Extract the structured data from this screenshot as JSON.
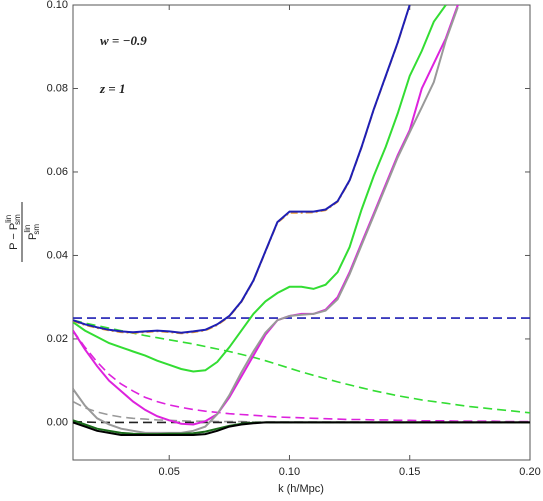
{
  "chart_data": {
    "type": "line",
    "annotations": [
      "w = −0.9",
      "z = 1"
    ],
    "xlabel": "k (h/Mpc)",
    "ylabel": {
      "numerator": "P − P",
      "sup": "lin",
      "sub": "sm",
      "denominator": "P",
      "den_sup": "lin",
      "den_sub": "sm"
    },
    "xlim": [
      0.01,
      0.2
    ],
    "ylim": [
      -0.009,
      0.1
    ],
    "xticks": [
      0.05,
      {
        "value": 0.1,
        "label": "0.10"
      },
      0.15,
      {
        "value": 0.2,
        "label": "0.20"
      }
    ],
    "yticks": [
      {
        "value": 0,
        "label": "0.00"
      },
      0.02,
      0.04,
      0.06,
      0.08,
      {
        "value": 0.1,
        "label": "0.10"
      }
    ],
    "x": [
      0.01,
      0.015,
      0.02,
      0.025,
      0.03,
      0.035,
      0.04,
      0.045,
      0.05,
      0.055,
      0.06,
      0.065,
      0.07,
      0.075,
      0.08,
      0.085,
      0.09,
      0.095,
      0.1,
      0.105,
      0.11,
      0.115,
      0.12,
      0.125,
      0.13,
      0.135,
      0.14,
      0.145,
      0.15,
      0.155,
      0.16,
      0.165,
      0.17,
      0.175,
      0.18,
      0.185,
      0.19,
      0.195,
      0.2
    ],
    "series": [
      {
        "color": "#1f1fb4",
        "style": "dashed",
        "values": [
          0.025,
          0.025,
          0.025,
          0.025,
          0.025,
          0.025,
          0.025,
          0.025,
          0.025,
          0.025,
          0.025,
          0.025,
          0.025,
          0.025,
          0.025,
          0.025,
          0.025,
          0.025,
          0.025,
          0.025,
          0.025,
          0.025,
          0.025,
          0.025,
          0.025,
          0.025,
          0.025,
          0.025,
          0.025,
          0.025,
          0.025,
          0.025,
          0.025,
          0.025,
          0.025,
          0.025,
          0.025,
          0.025,
          0.025
        ]
      },
      {
        "color": "#33dd33",
        "style": "dashed",
        "values": [
          0.0245,
          0.0238,
          0.0232,
          0.0226,
          0.022,
          0.0214,
          0.0208,
          0.0203,
          0.0198,
          0.0193,
          0.0188,
          0.0182,
          0.0176,
          0.017,
          0.0163,
          0.0156,
          0.0148,
          0.0139,
          0.013,
          0.0121,
          0.0113,
          0.0105,
          0.0097,
          0.009,
          0.0083,
          0.0076,
          0.007,
          0.0064,
          0.0059,
          0.0054,
          0.005,
          0.0046,
          0.0042,
          0.0038,
          0.0035,
          0.0032,
          0.0029,
          0.0026,
          0.0023
        ]
      },
      {
        "color": "#dd22dd",
        "style": "dashed",
        "values": [
          0.022,
          0.018,
          0.0145,
          0.0115,
          0.0092,
          0.0075,
          0.006,
          0.005,
          0.0042,
          0.0036,
          0.0031,
          0.0027,
          0.0024,
          0.0021,
          0.0019,
          0.0017,
          0.0015,
          0.0013,
          0.0012,
          0.0011,
          0.001,
          0.0009,
          0.0008,
          0.0007,
          0.0007,
          0.0006,
          0.0006,
          0.0005,
          0.0005,
          0.0004,
          0.0004,
          0.0004,
          0.0003,
          0.0003,
          0.0003,
          0.0003,
          0.0002,
          0.0002,
          0.0002
        ]
      },
      {
        "color": "#999999",
        "style": "dashed",
        "values": [
          0.005,
          0.0035,
          0.0025,
          0.0018,
          0.0013,
          0.001,
          0.0008,
          0.0006,
          0.0005,
          0.0004,
          0.0003,
          0.0003,
          0.0002,
          0.0002,
          0.0002,
          0.0001,
          0.0001,
          0.0001,
          0.0001,
          0.0001,
          0.0001,
          0.0001,
          0.0001,
          0.0001,
          0.0001,
          0.0001,
          0.0001,
          0.0001,
          0.0001,
          0.0001,
          0.0001,
          0.0001,
          0.0001,
          0.0001,
          0.0001,
          0.0001,
          0.0001,
          0.0001,
          0.0001
        ]
      },
      {
        "color": "#222222",
        "style": "dashed",
        "values": [
          0.0002,
          0.0001,
          0,
          0,
          0,
          0,
          0,
          0,
          0,
          0,
          0,
          0,
          0,
          0,
          0,
          0,
          0,
          0,
          0,
          0,
          0,
          0,
          0,
          0,
          0,
          0,
          0,
          0,
          0,
          0,
          0,
          0,
          0,
          0,
          0,
          0,
          0,
          0,
          0
        ]
      },
      {
        "color": "#33dd33",
        "style": "solid",
        "values": [
          0.024,
          0.022,
          0.0205,
          0.019,
          0.018,
          0.017,
          0.016,
          0.0148,
          0.0138,
          0.0128,
          0.0122,
          0.0125,
          0.0145,
          0.018,
          0.022,
          0.026,
          0.029,
          0.031,
          0.0325,
          0.0325,
          0.032,
          0.033,
          0.036,
          0.042,
          0.051,
          0.059,
          0.066,
          0.074,
          0.083,
          0.089,
          0.096,
          0.1,
          null,
          null,
          null,
          null,
          null,
          null,
          null
        ]
      },
      {
        "color": "#dd22dd",
        "style": "solid",
        "values": [
          0.022,
          0.0175,
          0.0135,
          0.01,
          0.0075,
          0.005,
          0.003,
          0.0015,
          0.0005,
          -0.0003,
          -0.0005,
          0.0003,
          0.002,
          0.006,
          0.011,
          0.016,
          0.021,
          0.0245,
          0.0255,
          0.026,
          0.026,
          0.027,
          0.03,
          0.036,
          0.043,
          0.05,
          0.057,
          0.064,
          0.07,
          0.08,
          0.086,
          0.092,
          0.1,
          null,
          null,
          null,
          null,
          null,
          null
        ]
      },
      {
        "color": "#999999",
        "style": "solid",
        "values": [
          0.008,
          0.004,
          0.001,
          -0.0005,
          -0.0015,
          -0.002,
          -0.0025,
          -0.0025,
          -0.0025,
          -0.0025,
          -0.002,
          -0.001,
          0.002,
          0.0065,
          0.012,
          0.017,
          0.0215,
          0.0245,
          0.0255,
          0.0258,
          0.026,
          0.0268,
          0.0295,
          0.0355,
          0.0425,
          0.0495,
          0.0565,
          0.0635,
          0.0695,
          0.0755,
          0.0815,
          0.0915,
          0.0995,
          null,
          null,
          null,
          null,
          null,
          null
        ]
      },
      {
        "color": "#1a6b1a",
        "style": "solid",
        "values": [
          0.0005,
          -0.0005,
          -0.0015,
          -0.002,
          -0.0025,
          -0.0027,
          -0.0028,
          -0.0028,
          -0.0027,
          -0.0027,
          -0.0026,
          -0.0022,
          -0.0015,
          -0.0008,
          -0.0003,
          -0.0001,
          0,
          0,
          0,
          0,
          0,
          0,
          0,
          0,
          0,
          0,
          0,
          0,
          0,
          0,
          0,
          0,
          0,
          0,
          0,
          0,
          0,
          0,
          0
        ]
      },
      {
        "color": "#000000",
        "style": "solid",
        "values": [
          0,
          -0.001,
          -0.002,
          -0.0025,
          -0.003,
          -0.003,
          -0.003,
          -0.003,
          -0.003,
          -0.003,
          -0.003,
          -0.0028,
          -0.002,
          -0.001,
          -0.0005,
          -0.0002,
          0,
          0,
          0,
          0,
          0,
          0,
          0,
          0,
          0,
          0,
          0,
          0,
          0,
          0,
          0,
          0,
          0,
          0,
          0,
          0,
          0,
          0,
          0
        ]
      },
      {
        "color": "#e8992e",
        "style": "dashdot",
        "values": [
          0.0243,
          0.0233,
          0.0226,
          0.022,
          0.0216,
          0.0214,
          0.0216,
          0.0218,
          0.0216,
          0.0213,
          0.0216,
          0.022,
          0.0233,
          0.0253,
          0.0288,
          0.0338,
          0.0408,
          0.0478,
          0.0502,
          0.0502,
          0.0503,
          0.0508,
          0.0528,
          0.0578,
          0.0658,
          0.0748,
          0.0828,
          0.0908,
          0.0998,
          null,
          null,
          null,
          null,
          null,
          null,
          null,
          null,
          null,
          null
        ]
      },
      {
        "color": "#1f1fb4",
        "style": "solid",
        "values": [
          0.0245,
          0.0235,
          0.0228,
          0.0222,
          0.0218,
          0.0216,
          0.0218,
          0.022,
          0.0218,
          0.0215,
          0.0218,
          0.0222,
          0.0235,
          0.0255,
          0.029,
          0.034,
          0.041,
          0.048,
          0.0505,
          0.0505,
          0.0505,
          0.051,
          0.053,
          0.058,
          0.066,
          0.075,
          0.083,
          0.091,
          0.1,
          null,
          null,
          null,
          null,
          null,
          null,
          null,
          null,
          null,
          null
        ]
      }
    ]
  }
}
